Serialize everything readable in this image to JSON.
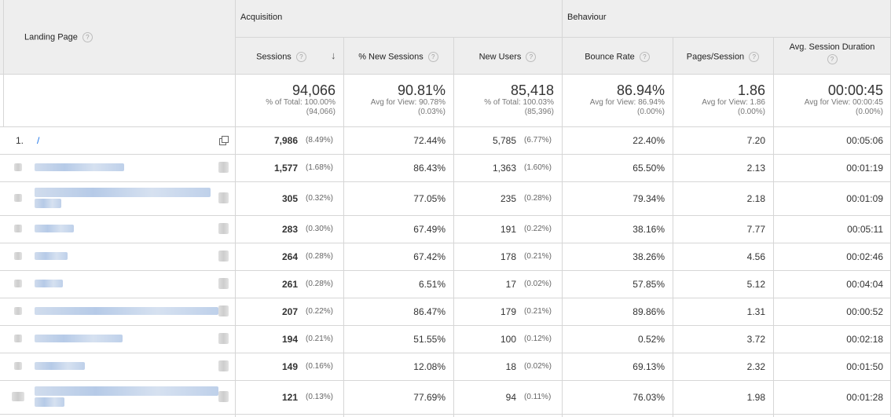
{
  "header": {
    "landing_page": "Landing Page",
    "acquisition": "Acquisition",
    "behaviour": "Behaviour",
    "help_glyph": "?",
    "columns": {
      "sessions": "Sessions",
      "new_sessions": "% New Sessions",
      "new_users": "New Users",
      "bounce_rate": "Bounce Rate",
      "pages_session": "Pages/Session",
      "avg_duration": "Avg. Session Duration"
    },
    "sort_arrow": "↓"
  },
  "totals": {
    "sessions": {
      "value": "94,066",
      "line1": "% of Total: 100.00%",
      "line2": "(94,066)"
    },
    "new_sessions": {
      "value": "90.81%",
      "line1": "Avg for View: 90.78%",
      "line2": "(0.03%)"
    },
    "new_users": {
      "value": "85,418",
      "line1": "% of Total: 100.03%",
      "line2": "(85,396)"
    },
    "bounce_rate": {
      "value": "86.94%",
      "line1": "Avg for View: 86.94%",
      "line2": "(0.00%)"
    },
    "pages_session": {
      "value": "1.86",
      "line1": "Avg for View: 1.86",
      "line2": "(0.00%)"
    },
    "avg_duration": {
      "value": "00:00:45",
      "line1": "Avg for View: 00:00:45",
      "line2": "(0.00%)"
    }
  },
  "rows": [
    {
      "index": "1.",
      "page": "/",
      "sessions": "7,986",
      "sessions_pct": "(8.49%)",
      "new_sessions": "72.44%",
      "new_users": "5,785",
      "new_users_pct": "(6.77%)",
      "bounce_rate": "22.40%",
      "pages_session": "7.20",
      "avg_duration": "00:05:06"
    },
    {
      "index": "",
      "page": "",
      "sessions": "1,577",
      "sessions_pct": "(1.68%)",
      "new_sessions": "86.43%",
      "new_users": "1,363",
      "new_users_pct": "(1.60%)",
      "bounce_rate": "65.50%",
      "pages_session": "2.13",
      "avg_duration": "00:01:19"
    },
    {
      "index": "",
      "page": "",
      "sessions": "305",
      "sessions_pct": "(0.32%)",
      "new_sessions": "77.05%",
      "new_users": "235",
      "new_users_pct": "(0.28%)",
      "bounce_rate": "79.34%",
      "pages_session": "2.18",
      "avg_duration": "00:01:09"
    },
    {
      "index": "",
      "page": "",
      "sessions": "283",
      "sessions_pct": "(0.30%)",
      "new_sessions": "67.49%",
      "new_users": "191",
      "new_users_pct": "(0.22%)",
      "bounce_rate": "38.16%",
      "pages_session": "7.77",
      "avg_duration": "00:05:11"
    },
    {
      "index": "",
      "page": "",
      "sessions": "264",
      "sessions_pct": "(0.28%)",
      "new_sessions": "67.42%",
      "new_users": "178",
      "new_users_pct": "(0.21%)",
      "bounce_rate": "38.26%",
      "pages_session": "4.56",
      "avg_duration": "00:02:46"
    },
    {
      "index": "",
      "page": "",
      "sessions": "261",
      "sessions_pct": "(0.28%)",
      "new_sessions": "6.51%",
      "new_users": "17",
      "new_users_pct": "(0.02%)",
      "bounce_rate": "57.85%",
      "pages_session": "5.12",
      "avg_duration": "00:04:04"
    },
    {
      "index": "",
      "page": "",
      "sessions": "207",
      "sessions_pct": "(0.22%)",
      "new_sessions": "86.47%",
      "new_users": "179",
      "new_users_pct": "(0.21%)",
      "bounce_rate": "89.86%",
      "pages_session": "1.31",
      "avg_duration": "00:00:52"
    },
    {
      "index": "",
      "page": "",
      "sessions": "194",
      "sessions_pct": "(0.21%)",
      "new_sessions": "51.55%",
      "new_users": "100",
      "new_users_pct": "(0.12%)",
      "bounce_rate": "0.52%",
      "pages_session": "3.72",
      "avg_duration": "00:02:18"
    },
    {
      "index": "",
      "page": "",
      "sessions": "149",
      "sessions_pct": "(0.16%)",
      "new_sessions": "12.08%",
      "new_users": "18",
      "new_users_pct": "(0.02%)",
      "bounce_rate": "69.13%",
      "pages_session": "2.32",
      "avg_duration": "00:01:50"
    },
    {
      "index": "",
      "page": "",
      "sessions": "121",
      "sessions_pct": "(0.13%)",
      "new_sessions": "77.69%",
      "new_users": "94",
      "new_users_pct": "(0.11%)",
      "bounce_rate": "76.03%",
      "pages_session": "1.98",
      "avg_duration": "00:01:28"
    }
  ]
}
